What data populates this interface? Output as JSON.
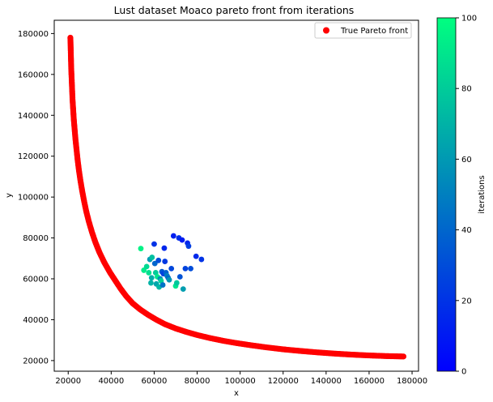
{
  "chart_data": {
    "type": "scatter",
    "title": "Lust dataset Moaco pareto front from iterations",
    "xlabel": "x",
    "ylabel": "y",
    "xlim": [
      13500,
      183000
    ],
    "ylim": [
      14800,
      186500
    ],
    "xticks": [
      20000,
      40000,
      60000,
      80000,
      100000,
      120000,
      140000,
      160000,
      180000
    ],
    "yticks": [
      20000,
      40000,
      60000,
      80000,
      100000,
      120000,
      140000,
      160000,
      180000
    ],
    "grid": false,
    "legend": {
      "position": "top-right",
      "entries": [
        {
          "label": "True Pareto front",
          "color": "#ff0000"
        }
      ]
    },
    "pareto_front": {
      "name": "True Pareto front",
      "color": "#ff0000",
      "points": [
        [
          21000,
          178000
        ],
        [
          21100,
          175000
        ],
        [
          21200,
          171000
        ],
        [
          21300,
          167000
        ],
        [
          21400,
          163000
        ],
        [
          21600,
          158000
        ],
        [
          21800,
          153000
        ],
        [
          22000,
          148000
        ],
        [
          22300,
          143000
        ],
        [
          22600,
          138000
        ],
        [
          23000,
          133000
        ],
        [
          23400,
          128000
        ],
        [
          23900,
          123000
        ],
        [
          24400,
          118000
        ],
        [
          25000,
          113000
        ],
        [
          25700,
          108000
        ],
        [
          26500,
          103000
        ],
        [
          27400,
          98000
        ],
        [
          28400,
          93000
        ],
        [
          29600,
          88000
        ],
        [
          31000,
          83000
        ],
        [
          32600,
          78000
        ],
        [
          34500,
          73000
        ],
        [
          36800,
          68000
        ],
        [
          39500,
          63000
        ],
        [
          42000,
          59000
        ],
        [
          44500,
          55000
        ],
        [
          47000,
          51500
        ],
        [
          50000,
          48000
        ],
        [
          53500,
          45000
        ],
        [
          57000,
          42500
        ],
        [
          61000,
          40000
        ],
        [
          65000,
          37800
        ],
        [
          70000,
          35700
        ],
        [
          75000,
          34000
        ],
        [
          80000,
          32500
        ],
        [
          86000,
          31000
        ],
        [
          92000,
          29700
        ],
        [
          98000,
          28600
        ],
        [
          105000,
          27500
        ],
        [
          112000,
          26500
        ],
        [
          120000,
          25500
        ],
        [
          128000,
          24700
        ],
        [
          136000,
          24000
        ],
        [
          144000,
          23400
        ],
        [
          152000,
          22900
        ],
        [
          160000,
          22500
        ],
        [
          168000,
          22200
        ],
        [
          172000,
          22100
        ],
        [
          176000,
          22000
        ]
      ]
    },
    "iterations": {
      "colorbar_label": "iterations",
      "colorbar_range": [
        0,
        100
      ],
      "colorbar_ticks": [
        0,
        20,
        40,
        60,
        80,
        100
      ],
      "colormap": "winter",
      "points": [
        [
          53800,
          74800,
          95
        ],
        [
          55200,
          64200,
          92
        ],
        [
          56500,
          66000,
          85
        ],
        [
          57500,
          63000,
          88
        ],
        [
          58000,
          69500,
          60
        ],
        [
          58500,
          58000,
          70
        ],
        [
          59000,
          70500,
          75
        ],
        [
          60000,
          77000,
          20
        ],
        [
          60300,
          67500,
          40
        ],
        [
          60700,
          63000,
          80
        ],
        [
          61000,
          57500,
          65
        ],
        [
          61500,
          61000,
          90
        ],
        [
          62000,
          69000,
          30
        ],
        [
          62300,
          56000,
          72
        ],
        [
          62800,
          60000,
          55
        ],
        [
          63200,
          59000,
          82
        ],
        [
          63600,
          63500,
          35
        ],
        [
          64000,
          57000,
          45
        ],
        [
          64300,
          62500,
          25
        ],
        [
          64700,
          75000,
          15
        ],
        [
          65000,
          68500,
          22
        ],
        [
          65500,
          63000,
          38
        ],
        [
          66000,
          61500,
          50
        ],
        [
          66500,
          60500,
          42
        ],
        [
          67000,
          59500,
          58
        ],
        [
          68000,
          65000,
          28
        ],
        [
          69000,
          81000,
          12
        ],
        [
          70000,
          56500,
          90
        ],
        [
          70500,
          58000,
          78
        ],
        [
          71500,
          80000,
          18
        ],
        [
          72000,
          61000,
          32
        ],
        [
          73000,
          79000,
          10
        ],
        [
          73500,
          55000,
          62
        ],
        [
          74500,
          65000,
          26
        ],
        [
          75500,
          77500,
          14
        ],
        [
          76000,
          76000,
          24
        ],
        [
          77000,
          65000,
          30
        ],
        [
          79500,
          71000,
          16
        ],
        [
          82000,
          69500,
          20
        ],
        [
          58800,
          60500,
          68
        ]
      ]
    }
  }
}
